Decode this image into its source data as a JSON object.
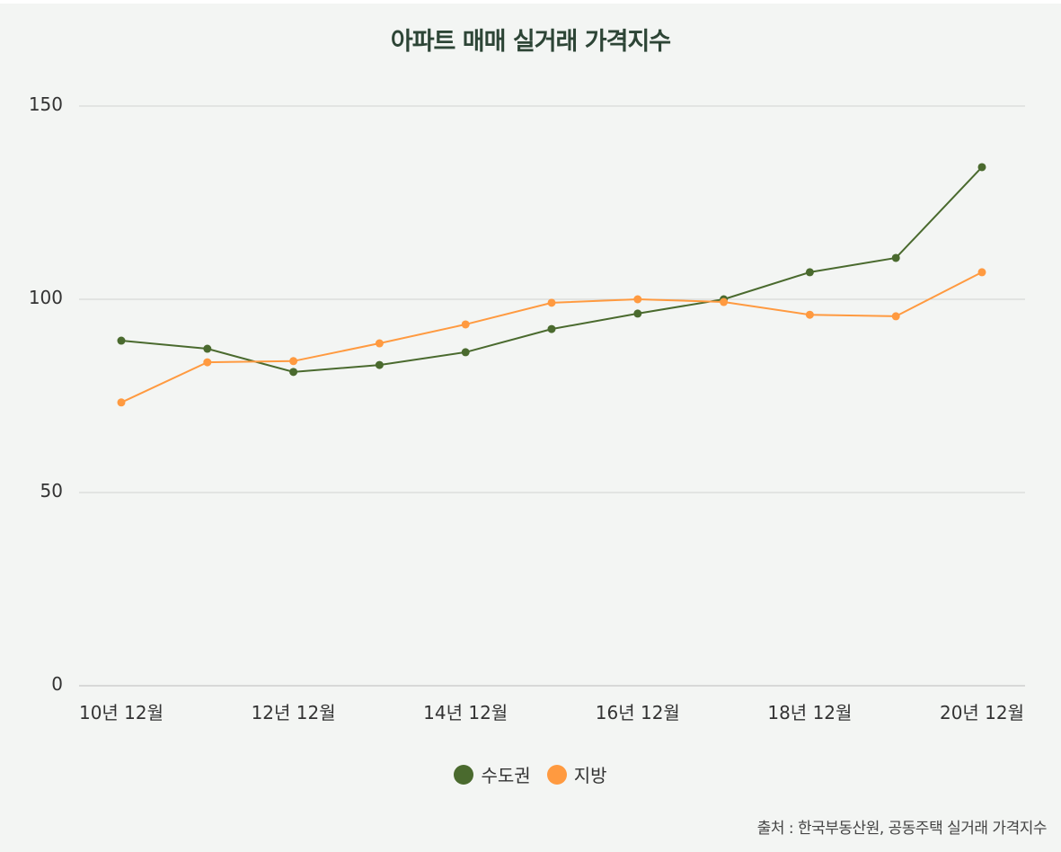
{
  "chart_data": {
    "type": "line",
    "title": "아파트 매매 실거래 가격지수",
    "x": [
      2010,
      2011,
      2012,
      2013,
      2014,
      2015,
      2016,
      2017,
      2018,
      2019,
      2020
    ],
    "x_tick_labels": [
      "10년 12월",
      "12년 12월",
      "14년 12월",
      "16년 12월",
      "18년 12월",
      "20년 12월"
    ],
    "y_ticks": [
      "0",
      "50",
      "100",
      "150"
    ],
    "ylim": [
      0,
      150
    ],
    "grid": true,
    "legend_position": "bottom",
    "series": [
      {
        "name": "수도권",
        "color": "#4a6a2e",
        "values": [
          89.3,
          87.2,
          81.2,
          83.0,
          86.3,
          92.3,
          96.3,
          100.0,
          107.0,
          110.7,
          134.2
        ]
      },
      {
        "name": "지방",
        "color": "#ff9a40",
        "values": [
          73.3,
          83.7,
          84.0,
          88.6,
          93.5,
          99.1,
          100.0,
          99.3,
          96.0,
          95.6,
          107.0
        ]
      }
    ],
    "source": "출처 : 한국부동산원, 공동주택 실거래 가격지수"
  }
}
